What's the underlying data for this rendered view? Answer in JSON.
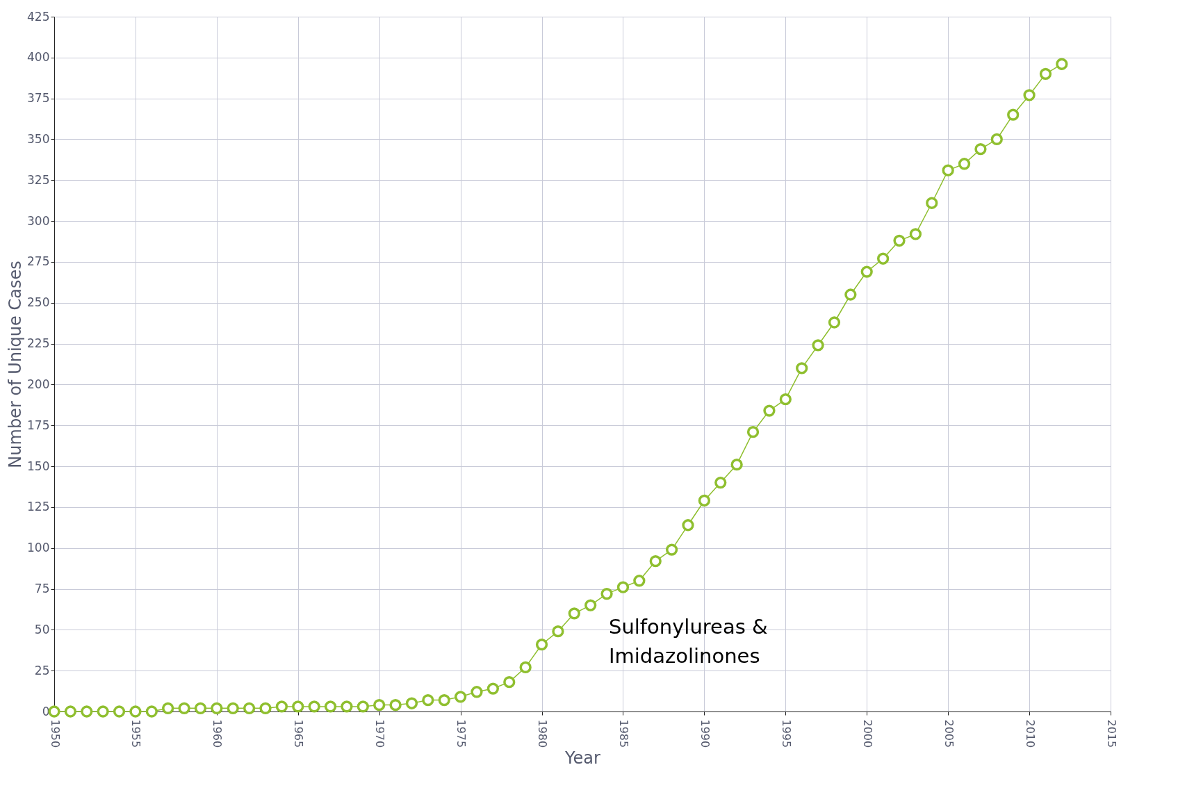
{
  "chart_data": {
    "type": "line",
    "xlabel": "Year",
    "ylabel": "Number of Unique Cases",
    "x": [
      1950,
      1951,
      1952,
      1953,
      1954,
      1955,
      1956,
      1957,
      1958,
      1959,
      1960,
      1961,
      1962,
      1963,
      1964,
      1965,
      1966,
      1967,
      1968,
      1969,
      1970,
      1971,
      1972,
      1973,
      1974,
      1975,
      1976,
      1977,
      1978,
      1979,
      1980,
      1981,
      1982,
      1983,
      1984,
      1985,
      1986,
      1987,
      1988,
      1989,
      1990,
      1991,
      1992,
      1993,
      1994,
      1995,
      1996,
      1997,
      1998,
      1999,
      2000,
      2001,
      2002,
      2003,
      2004,
      2005,
      2006,
      2007,
      2008,
      2009,
      2010,
      2011,
      2012
    ],
    "series": [
      {
        "color": "#8fbf2f",
        "values": [
          0,
          0,
          0,
          0,
          0,
          0,
          0,
          2,
          2,
          2,
          2,
          2,
          2,
          2,
          3,
          3,
          3,
          3,
          3,
          3,
          4,
          4,
          5,
          7,
          7,
          9,
          12,
          14,
          18,
          27,
          41,
          49,
          60,
          65,
          72,
          76,
          80,
          92,
          99,
          114,
          129,
          140,
          151,
          171,
          184,
          191,
          210,
          224,
          238,
          255,
          269,
          277,
          288,
          292,
          311,
          331,
          335,
          344,
          350,
          365,
          377,
          390,
          396
        ]
      }
    ],
    "xlim": [
      1950,
      2015
    ],
    "xticks": [
      1950,
      1955,
      1960,
      1965,
      1970,
      1975,
      1980,
      1985,
      1990,
      1995,
      2000,
      2005,
      2010,
      2015
    ],
    "ylim": [
      0,
      425
    ],
    "yticks": [
      0,
      25,
      50,
      75,
      100,
      125,
      150,
      175,
      200,
      225,
      250,
      275,
      300,
      325,
      350,
      375,
      400,
      425
    ],
    "grid": true,
    "marker": "circle",
    "legend": false,
    "annotations": [
      "Sulfonylureas &\nImidazolinones"
    ]
  }
}
